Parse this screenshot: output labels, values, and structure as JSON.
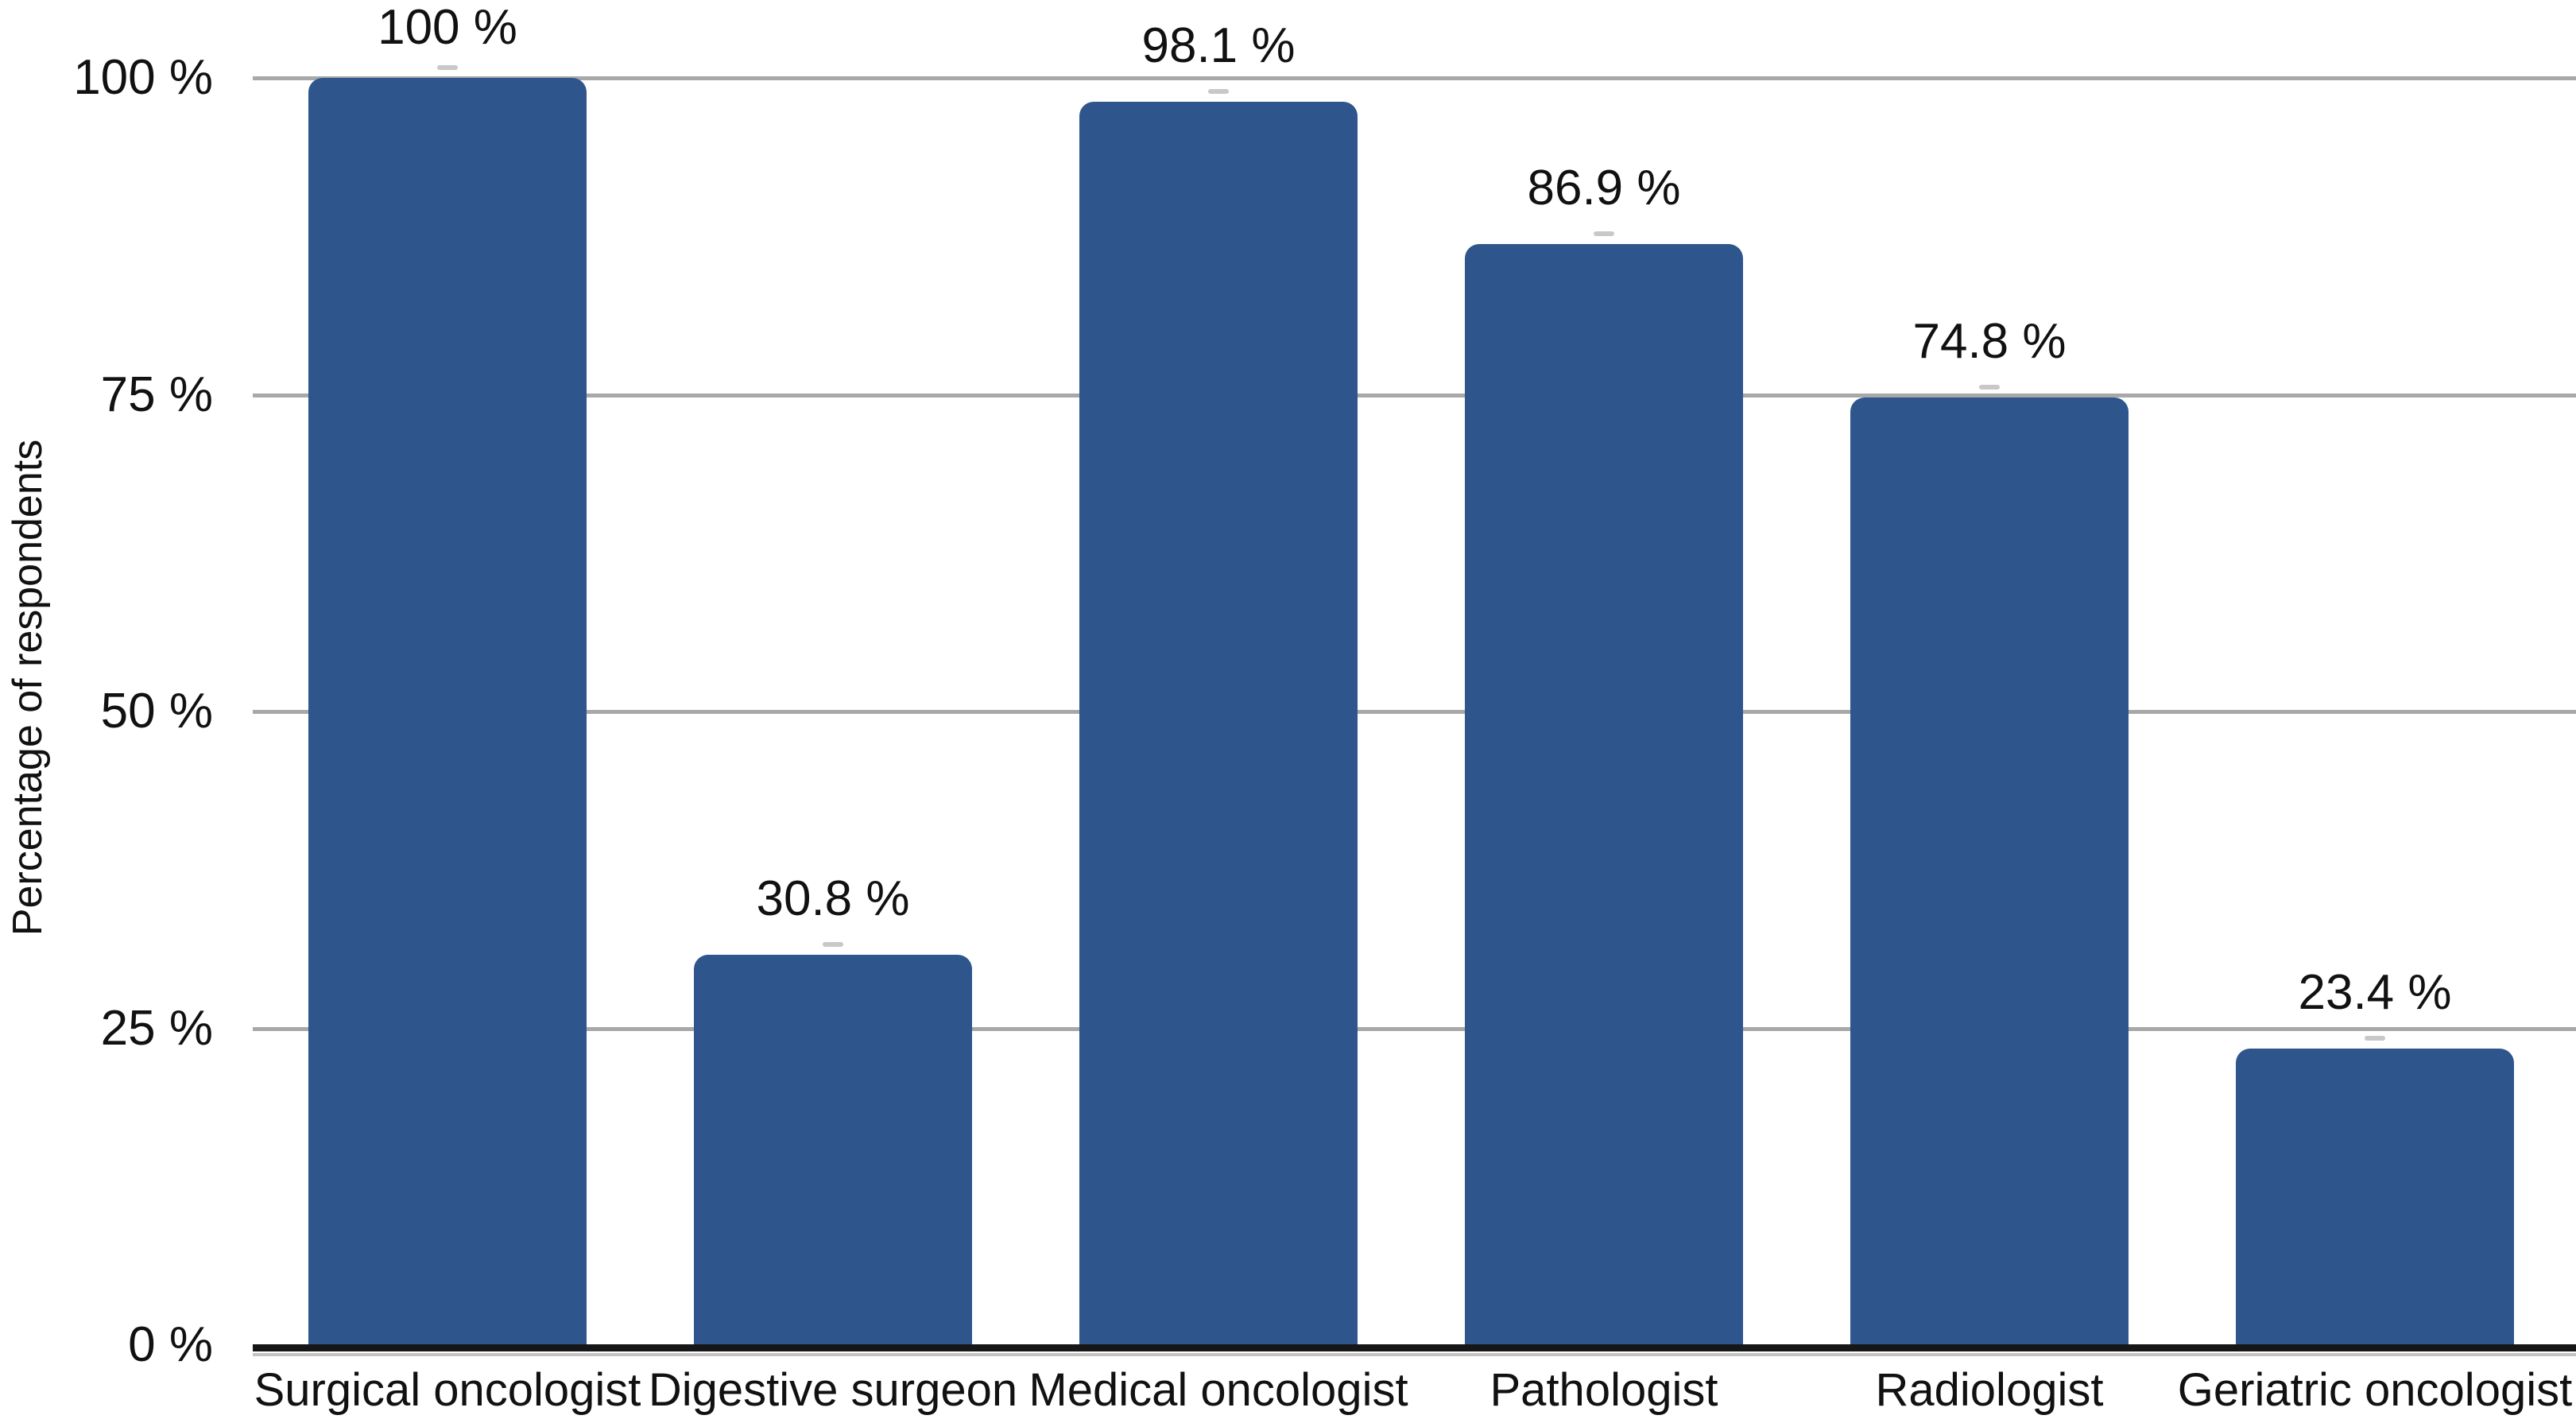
{
  "chart_data": {
    "type": "bar",
    "title": "",
    "xlabel": "",
    "ylabel": "Percentage of respondents",
    "categories": [
      "Surgical oncologist",
      "Digestive surgeon",
      "Medical oncologist",
      "Pathologist",
      "Radiologist",
      "Geriatric oncologist"
    ],
    "values": [
      100,
      30.8,
      98.1,
      86.9,
      74.8,
      23.4
    ],
    "bar_labels": [
      "100 %",
      "30.8 %",
      "98.1 %",
      "86.9 %",
      "74.8 %",
      "23.4 %"
    ],
    "ylim": [
      0,
      100
    ],
    "yticks": [
      0,
      25,
      50,
      75,
      100
    ],
    "ytick_labels": [
      "0 %",
      "25 %",
      "50 %",
      "75 %",
      "100 %"
    ],
    "grid": true,
    "legend": false,
    "colors": {
      "bar_fill": "#2E568C",
      "gridline": "#A8A8A8",
      "axis_line": "#161616",
      "text": "#111111",
      "background": "#FFFFFF"
    }
  }
}
